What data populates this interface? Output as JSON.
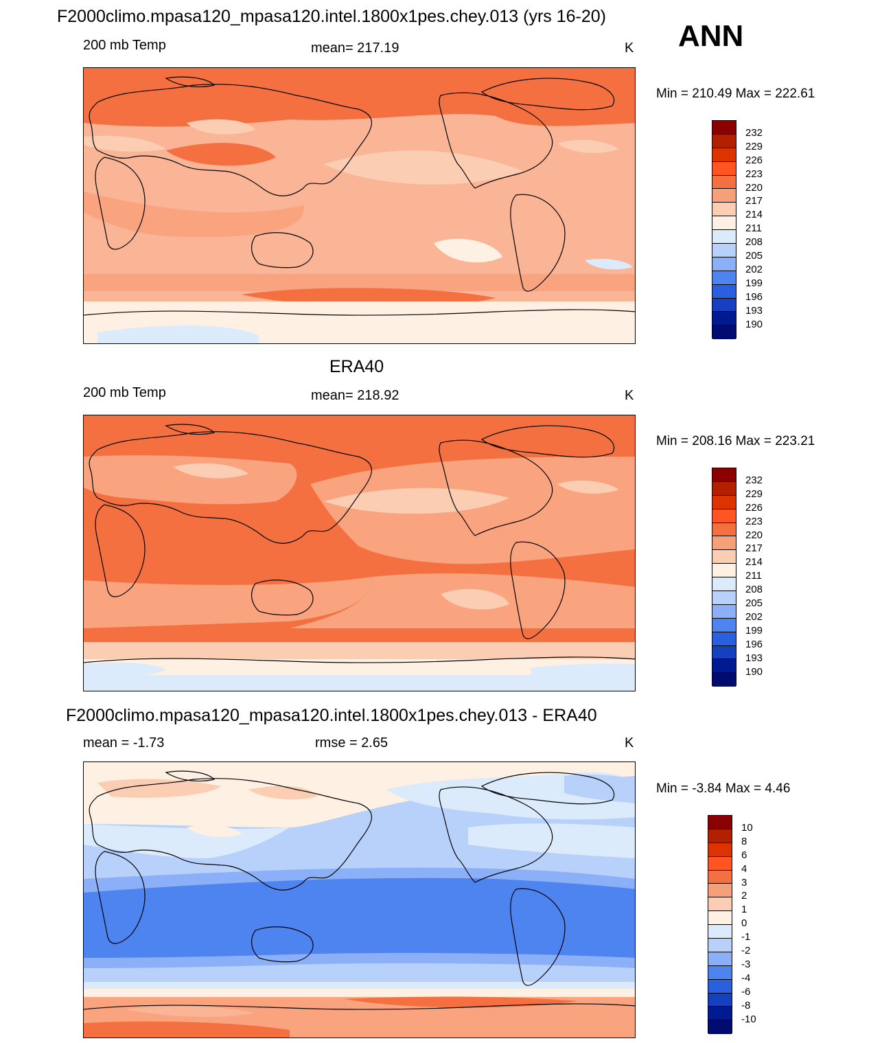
{
  "season": "ANN",
  "panels": [
    {
      "title": "F2000climo.mpasa120_mpasa120.intel.1800x1pes.chey.013 (yrs 16-20)",
      "left_label": "200 mb Temp",
      "center_label": "mean= 217.19",
      "units": "K",
      "minmax": "Min = 210.49 Max = 222.61",
      "colorbar": {
        "labels": [
          "232",
          "229",
          "226",
          "223",
          "220",
          "217",
          "214",
          "211",
          "208",
          "205",
          "202",
          "199",
          "196",
          "193",
          "190"
        ],
        "colors": [
          "#8b0000",
          "#b22000",
          "#dd3300",
          "#ff5522",
          "#f47040",
          "#f6a07a",
          "#fbcdb3",
          "#fef0e2",
          "#dcebfc",
          "#b8d1fb",
          "#8cb0f8",
          "#4d84f0",
          "#2a5fe0",
          "#1540c0",
          "#001a90",
          "#000c70"
        ]
      }
    },
    {
      "title": "ERA40",
      "left_label": "200 mb Temp",
      "center_label": "mean= 218.92",
      "units": "K",
      "minmax": "Min = 208.16 Max = 223.21",
      "colorbar": {
        "labels": [
          "232",
          "229",
          "226",
          "223",
          "220",
          "217",
          "214",
          "211",
          "208",
          "205",
          "202",
          "199",
          "196",
          "193",
          "190"
        ],
        "colors": [
          "#8b0000",
          "#b22000",
          "#dd3300",
          "#ff5522",
          "#f47040",
          "#f6a07a",
          "#fbcdb3",
          "#fef0e2",
          "#dcebfc",
          "#b8d1fb",
          "#8cb0f8",
          "#4d84f0",
          "#2a5fe0",
          "#1540c0",
          "#001a90",
          "#000c70"
        ]
      }
    },
    {
      "title": "F2000climo.mpasa120_mpasa120.intel.1800x1pes.chey.013 - ERA40",
      "left_label": "mean =  -1.73",
      "center_label": "rmse =   2.65",
      "units": "K",
      "minmax": "Min =  -3.84 Max =   4.46",
      "colorbar": {
        "labels": [
          "10",
          "8",
          "6",
          "4",
          "3",
          "2",
          "1",
          "0",
          "-1",
          "-2",
          "-3",
          "-4",
          "-6",
          "-8",
          "-10"
        ],
        "colors": [
          "#8b0000",
          "#b22000",
          "#dd3300",
          "#ff5522",
          "#f47040",
          "#f6a07a",
          "#fbcdb3",
          "#fef0e2",
          "#dcebfc",
          "#b8d1fb",
          "#8cb0f8",
          "#4d84f0",
          "#2a5fe0",
          "#1540c0",
          "#001a90",
          "#000c70"
        ]
      }
    }
  ]
}
